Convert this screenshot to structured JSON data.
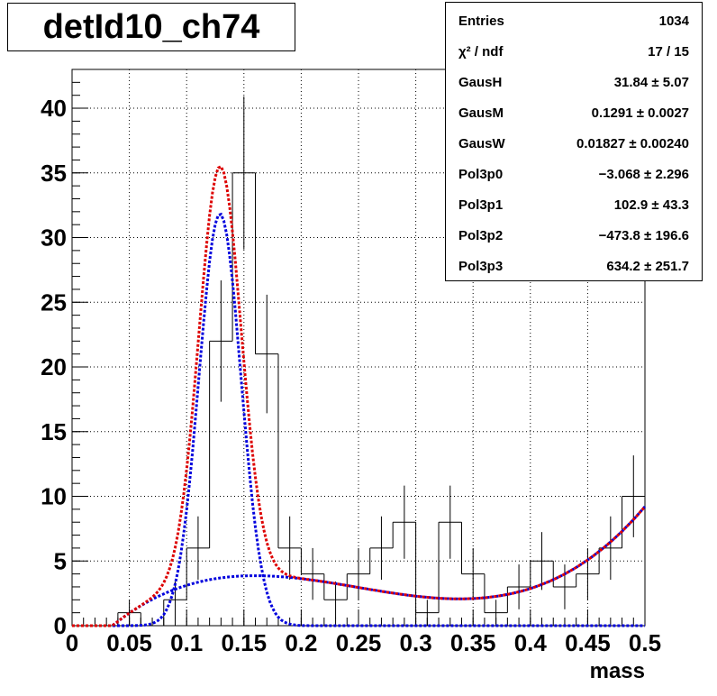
{
  "title": "detId10_ch74",
  "stats": [
    {
      "label": "Entries",
      "value": "1034"
    },
    {
      "label": "χ² / ndf",
      "value": "17 / 15"
    },
    {
      "label": "GausH",
      "value": "31.84 ± 5.07"
    },
    {
      "label": "GausM",
      "value": "0.1291 ± 0.0027"
    },
    {
      "label": "GausW",
      "value": "0.01827 ± 0.00240"
    },
    {
      "label": "Pol3p0",
      "value": "−3.068 ± 2.296"
    },
    {
      "label": "Pol3p1",
      "value": "102.9 ± 43.3"
    },
    {
      "label": "Pol3p2",
      "value": "−473.8 ± 196.6"
    },
    {
      "label": "Pol3p3",
      "value": "634.2 ± 251.7"
    }
  ],
  "colors": {
    "histogram": "#000000",
    "total_fit": "#dd0000",
    "components": "#0000dd",
    "grid": "#000000"
  },
  "chart_data": {
    "type": "histogram",
    "xlabel": "mass",
    "ylabel": "",
    "xlim": [
      0,
      0.5
    ],
    "ylim": [
      0,
      43
    ],
    "grid": true,
    "x_ticks": [
      "0",
      "0.05",
      "0.1",
      "0.15",
      "0.2",
      "0.25",
      "0.3",
      "0.35",
      "0.4",
      "0.45",
      "0.5"
    ],
    "y_ticks": [
      "0",
      "5",
      "10",
      "15",
      "20",
      "25",
      "30",
      "35",
      "40"
    ],
    "bin_width": 0.02,
    "bin_edges_start": 0,
    "counts": [
      0,
      0,
      1,
      0,
      2,
      6,
      22,
      35,
      21,
      6,
      4,
      2,
      4,
      6,
      8,
      1,
      8,
      4,
      1,
      3,
      5,
      3,
      4,
      6,
      10
    ],
    "series": [
      {
        "name": "total fit",
        "style": "dotted",
        "color": "#dd0000"
      },
      {
        "name": "gaussian",
        "style": "dotted",
        "color": "#0000dd"
      },
      {
        "name": "background",
        "style": "dotted",
        "color": "#0000dd"
      }
    ]
  }
}
